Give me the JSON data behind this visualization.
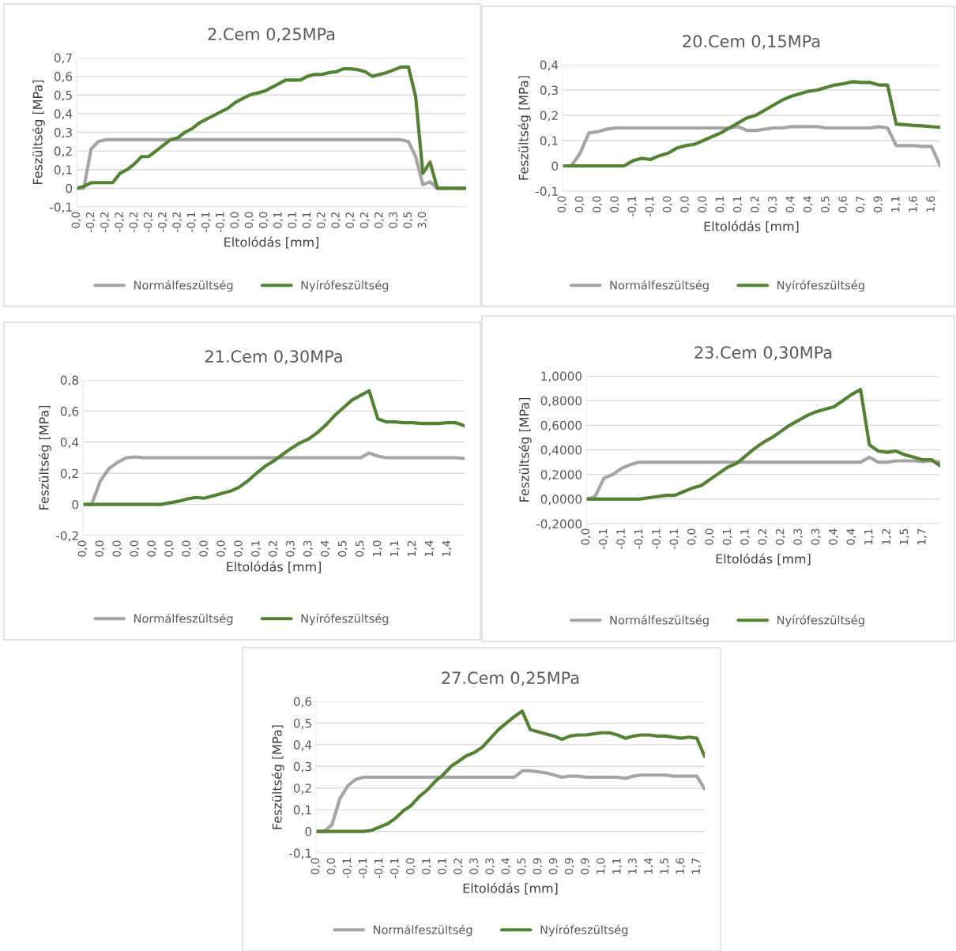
{
  "chart_data": [
    {
      "type": "line",
      "title": "2.Cem 0,25MPa",
      "xlabel": "Eltolódás [mm]",
      "ylabel": "Feszültség [MPa]",
      "legend": "bottom",
      "grid": "y",
      "marker": "none",
      "line_style": "solid",
      "ylim": [
        -0.1,
        0.7
      ],
      "yticks": [
        {
          "value": -0.1,
          "label": "-0,1"
        },
        0,
        {
          "value": 0.1,
          "label": "0,1"
        },
        {
          "value": 0.2,
          "label": "0,2"
        },
        {
          "value": 0.3,
          "label": "0,3"
        },
        {
          "value": 0.4,
          "label": "0,4"
        },
        {
          "value": 0.5,
          "label": "0,5"
        },
        {
          "value": 0.6,
          "label": "0,6"
        },
        {
          "value": 0.7,
          "label": "0,7"
        }
      ],
      "categories": [
        "0,0",
        null,
        "-0,2",
        null,
        "-0,2",
        null,
        "-0,2",
        null,
        "-0,2",
        null,
        "-0,2",
        null,
        "-0,2",
        null,
        "-0,2",
        null,
        "-0,1",
        null,
        "-0,1",
        null,
        "-0,1",
        null,
        "0,0",
        null,
        "0,0",
        null,
        "0,0",
        null,
        "0,1",
        null,
        "0,1",
        null,
        "0,1",
        null,
        "0,2",
        null,
        "0,2",
        null,
        "0,2",
        null,
        "0,2",
        null,
        "0,2",
        null,
        "0,3",
        null,
        "0,5",
        null,
        "3,0",
        null,
        null,
        null,
        null,
        null,
        null
      ],
      "series": [
        {
          "name": "Normálfeszültség",
          "color": "#a5a5a5",
          "values": [
            0,
            0,
            0.21,
            0.25,
            0.26,
            0.26,
            0.26,
            0.26,
            0.26,
            0.26,
            0.26,
            0.26,
            0.26,
            0.26,
            0.26,
            0.26,
            0.26,
            0.26,
            0.26,
            0.26,
            0.26,
            0.26,
            0.26,
            0.26,
            0.26,
            0.26,
            0.26,
            0.26,
            0.26,
            0.26,
            0.26,
            0.26,
            0.26,
            0.26,
            0.26,
            0.26,
            0.26,
            0.26,
            0.26,
            0.26,
            0.26,
            0.26,
            0.26,
            0.26,
            0.26,
            0.26,
            0.25,
            0.17,
            0.02,
            0.035,
            0,
            0,
            0,
            0,
            0
          ]
        },
        {
          "name": "Nyírófeszültség",
          "color": "#548235",
          "values": [
            0,
            0.01,
            0.03,
            0.03,
            0.03,
            0.03,
            0.08,
            0.1,
            0.13,
            0.17,
            0.17,
            0.2,
            0.23,
            0.26,
            0.27,
            0.3,
            0.32,
            0.35,
            0.37,
            0.39,
            0.41,
            0.43,
            0.46,
            0.48,
            0.5,
            0.51,
            0.52,
            0.54,
            0.56,
            0.58,
            0.58,
            0.58,
            0.6,
            0.61,
            0.61,
            0.62,
            0.625,
            0.64,
            0.64,
            0.635,
            0.625,
            0.6,
            0.61,
            0.62,
            0.635,
            0.65,
            0.65,
            0.49,
            0.08,
            0.14,
            0,
            0,
            0,
            0,
            0
          ]
        }
      ]
    },
    {
      "type": "line",
      "title": "20.Cem 0,15MPa",
      "xlabel": "Eltolódás [mm]",
      "ylabel": "Feszültség [MPa]",
      "legend": "bottom",
      "grid": "y",
      "marker": "none",
      "line_style": "solid",
      "ylim": [
        -0.1,
        0.4
      ],
      "yticks": [
        {
          "value": -0.1,
          "label": "-0,1"
        },
        0,
        {
          "value": 0.1,
          "label": "0,1"
        },
        {
          "value": 0.2,
          "label": "0,2"
        },
        {
          "value": 0.3,
          "label": "0,3"
        },
        {
          "value": 0.4,
          "label": "0,4"
        }
      ],
      "categories": [
        "0,0",
        null,
        "0,0",
        null,
        "0,0",
        null,
        "0,0",
        null,
        "-0,1",
        null,
        "-0,1",
        null,
        "0,0",
        null,
        "0,0",
        null,
        "0,0",
        null,
        "0,1",
        null,
        "0,1",
        null,
        "0,2",
        null,
        "0,3",
        null,
        "0,4",
        null,
        "0,4",
        null,
        "0,5",
        null,
        "0,6",
        null,
        "0,7",
        null,
        "0,9",
        null,
        "1,1",
        null,
        "1,6",
        null,
        "1,6",
        null
      ],
      "series": [
        {
          "name": "Normálfeszültség",
          "color": "#a5a5a5",
          "values": [
            0,
            0,
            0.05,
            0.13,
            0.135,
            0.145,
            0.15,
            0.15,
            0.15,
            0.15,
            0.15,
            0.15,
            0.15,
            0.15,
            0.15,
            0.15,
            0.15,
            0.15,
            0.15,
            0.15,
            0.155,
            0.14,
            0.14,
            0.145,
            0.15,
            0.15,
            0.155,
            0.155,
            0.155,
            0.155,
            0.15,
            0.15,
            0.15,
            0.15,
            0.15,
            0.15,
            0.155,
            0.15,
            0.08,
            0.08,
            0.08,
            0.077,
            0.077,
            0
          ]
        },
        {
          "name": "Nyírófeszültség",
          "color": "#548235",
          "values": [
            0,
            0,
            0,
            0,
            0,
            0,
            0,
            0,
            0.02,
            0.03,
            0.025,
            0.04,
            0.05,
            0.07,
            0.08,
            0.085,
            0.1,
            0.115,
            0.13,
            0.15,
            0.17,
            0.19,
            0.2,
            0.22,
            0.24,
            0.26,
            0.275,
            0.285,
            0.295,
            0.3,
            0.31,
            0.32,
            0.325,
            0.333,
            0.33,
            0.33,
            0.32,
            0.32,
            0.165,
            0.163,
            0.16,
            0.158,
            0.155,
            0.153
          ]
        }
      ]
    },
    {
      "type": "line",
      "title": "21.Cem 0,30MPa",
      "xlabel": "Eltolódás [mm]",
      "ylabel": "Feszültség [MPa]",
      "legend": "bottom",
      "grid": "y",
      "marker": "none",
      "line_style": "solid",
      "ylim": [
        -0.2,
        0.8
      ],
      "yticks": [
        {
          "value": -0.2,
          "label": "-0,2"
        },
        0,
        {
          "value": 0.2,
          "label": "0,2"
        },
        {
          "value": 0.4,
          "label": "0,4"
        },
        {
          "value": 0.6,
          "label": "0,6"
        },
        {
          "value": 0.8,
          "label": "0,8"
        }
      ],
      "categories": [
        "0,0",
        null,
        "0,0",
        null,
        "0,0",
        null,
        "0,0",
        null,
        "0,0",
        null,
        "0,0",
        null,
        "0,0",
        null,
        "0,0",
        null,
        "0,0",
        null,
        "0,0",
        null,
        "0,1",
        null,
        "0,2",
        null,
        "0,3",
        null,
        "0,3",
        null,
        "0,4",
        null,
        "0,5",
        null,
        "0,5",
        null,
        "1,0",
        null,
        "1,1",
        null,
        "1,2",
        null,
        "1,4",
        null,
        "1,4",
        null,
        null
      ],
      "series": [
        {
          "name": "Normálfeszültség",
          "color": "#a5a5a5",
          "values": [
            0,
            0,
            0.15,
            0.23,
            0.27,
            0.3,
            0.305,
            0.3,
            0.3,
            0.3,
            0.3,
            0.3,
            0.3,
            0.3,
            0.3,
            0.3,
            0.3,
            0.3,
            0.3,
            0.3,
            0.3,
            0.3,
            0.3,
            0.3,
            0.3,
            0.3,
            0.3,
            0.3,
            0.3,
            0.3,
            0.3,
            0.3,
            0.3,
            0.33,
            0.31,
            0.3,
            0.3,
            0.3,
            0.3,
            0.3,
            0.3,
            0.3,
            0.3,
            0.3,
            0.295
          ]
        },
        {
          "name": "Nyírófeszültség",
          "color": "#548235",
          "values": [
            0,
            0,
            0,
            0,
            0,
            0,
            0,
            0,
            0,
            0,
            0.01,
            0.02,
            0.035,
            0.045,
            0.04,
            0.055,
            0.07,
            0.085,
            0.11,
            0.15,
            0.2,
            0.245,
            0.28,
            0.32,
            0.36,
            0.395,
            0.42,
            0.46,
            0.51,
            0.57,
            0.62,
            0.67,
            0.7,
            0.73,
            0.55,
            0.53,
            0.53,
            0.525,
            0.525,
            0.52,
            0.52,
            0.52,
            0.525,
            0.525,
            0.505
          ]
        }
      ]
    },
    {
      "type": "line",
      "title": "23.Cem 0,30MPa",
      "xlabel": "Eltolódás [mm]",
      "ylabel": "Feszültség [MPa]",
      "legend": "bottom",
      "grid": "y",
      "marker": "none",
      "line_style": "solid",
      "ylim": [
        -0.2,
        1.0
      ],
      "yticks": [
        {
          "value": -0.2,
          "label": "-0,2000"
        },
        {
          "value": 0,
          "label": "0,0000"
        },
        {
          "value": 0.2,
          "label": "0,2000"
        },
        {
          "value": 0.4,
          "label": "0,4000"
        },
        {
          "value": 0.6,
          "label": "0,6000"
        },
        {
          "value": 0.8,
          "label": "0,8000"
        },
        {
          "value": 1.0,
          "label": "1,0000"
        }
      ],
      "categories": [
        "0,0",
        null,
        "-0,1",
        null,
        "-0,1",
        null,
        "-0,1",
        null,
        "-0,1",
        null,
        "-0,1",
        null,
        "0,0",
        null,
        "0,0",
        null,
        "0,1",
        null,
        "0,1",
        null,
        "0,2",
        null,
        "0,2",
        null,
        "0,3",
        null,
        "0,3",
        null,
        "0,4",
        null,
        "0,4",
        null,
        "1,1",
        null,
        "1,2",
        null,
        "1,5",
        null,
        "1,7",
        null,
        null
      ],
      "series": [
        {
          "name": "Normálfeszültség",
          "color": "#a5a5a5",
          "values": [
            0,
            0.02,
            0.17,
            0.2,
            0.25,
            0.28,
            0.3,
            0.3,
            0.3,
            0.3,
            0.3,
            0.3,
            0.3,
            0.3,
            0.3,
            0.3,
            0.3,
            0.3,
            0.3,
            0.3,
            0.3,
            0.3,
            0.3,
            0.3,
            0.3,
            0.3,
            0.3,
            0.3,
            0.3,
            0.3,
            0.3,
            0.3,
            0.34,
            0.3,
            0.3,
            0.31,
            0.31,
            0.31,
            0.305,
            0.31,
            0.3
          ]
        },
        {
          "name": "Nyírófeszültség",
          "color": "#548235",
          "values": [
            0,
            0,
            0,
            0,
            0,
            0,
            0,
            0.01,
            0.02,
            0.03,
            0.03,
            0.06,
            0.09,
            0.11,
            0.16,
            0.21,
            0.26,
            0.29,
            0.35,
            0.41,
            0.46,
            0.5,
            0.55,
            0.6,
            0.64,
            0.68,
            0.71,
            0.73,
            0.75,
            0.8,
            0.85,
            0.89,
            0.44,
            0.39,
            0.38,
            0.39,
            0.36,
            0.34,
            0.32,
            0.32,
            0.27
          ]
        }
      ]
    },
    {
      "type": "line",
      "title": "27.Cem 0,25MPa",
      "xlabel": "Eltolódás [mm]",
      "ylabel": "Feszültség [MPa]",
      "legend": "bottom",
      "grid": "y",
      "marker": "none",
      "line_style": "solid",
      "ylim": [
        -0.1,
        0.6
      ],
      "yticks": [
        {
          "value": -0.1,
          "label": "-0,1"
        },
        0,
        {
          "value": 0.1,
          "label": "0,1"
        },
        {
          "value": 0.2,
          "label": "0,2"
        },
        {
          "value": 0.3,
          "label": "0,3"
        },
        {
          "value": 0.4,
          "label": "0,4"
        },
        {
          "value": 0.5,
          "label": "0,5"
        },
        {
          "value": 0.6,
          "label": "0,6"
        }
      ],
      "categories": [
        "0,0",
        null,
        "0,0",
        null,
        "-0,1",
        null,
        "-0,1",
        null,
        "-0,1",
        null,
        "-0,1",
        null,
        "0,0",
        null,
        "0,1",
        null,
        "0,1",
        null,
        "0,2",
        null,
        "0,3",
        null,
        "0,3",
        null,
        "0,4",
        null,
        "0,5",
        null,
        "0,9",
        null,
        "0,9",
        null,
        "0,9",
        null,
        "0,9",
        null,
        "1,0",
        null,
        "1,1",
        null,
        "1,3",
        null,
        "1,4",
        null,
        "1,5",
        null,
        "1,6",
        null,
        "1,7",
        null
      ],
      "series": [
        {
          "name": "Normálfeszültség",
          "color": "#a5a5a5",
          "values": [
            0,
            0,
            0.03,
            0.15,
            0.21,
            0.24,
            0.25,
            0.25,
            0.25,
            0.25,
            0.25,
            0.25,
            0.25,
            0.25,
            0.25,
            0.25,
            0.25,
            0.25,
            0.25,
            0.25,
            0.25,
            0.25,
            0.25,
            0.25,
            0.25,
            0.25,
            0.28,
            0.28,
            0.275,
            0.27,
            0.26,
            0.25,
            0.255,
            0.255,
            0.25,
            0.25,
            0.25,
            0.25,
            0.25,
            0.245,
            0.255,
            0.26,
            0.26,
            0.26,
            0.26,
            0.255,
            0.255,
            0.255,
            0.255,
            0.195
          ]
        },
        {
          "name": "Nyírófeszültség",
          "color": "#548235",
          "values": [
            0,
            0,
            0,
            0,
            0,
            0,
            0,
            0.005,
            0.02,
            0.035,
            0.06,
            0.095,
            0.12,
            0.16,
            0.19,
            0.23,
            0.26,
            0.3,
            0.325,
            0.35,
            0.365,
            0.39,
            0.43,
            0.47,
            0.5,
            0.53,
            0.555,
            0.47,
            0.46,
            0.45,
            0.44,
            0.425,
            0.44,
            0.445,
            0.445,
            0.45,
            0.455,
            0.455,
            0.445,
            0.43,
            0.44,
            0.445,
            0.445,
            0.44,
            0.44,
            0.435,
            0.43,
            0.435,
            0.43,
            0.345
          ]
        }
      ]
    }
  ]
}
